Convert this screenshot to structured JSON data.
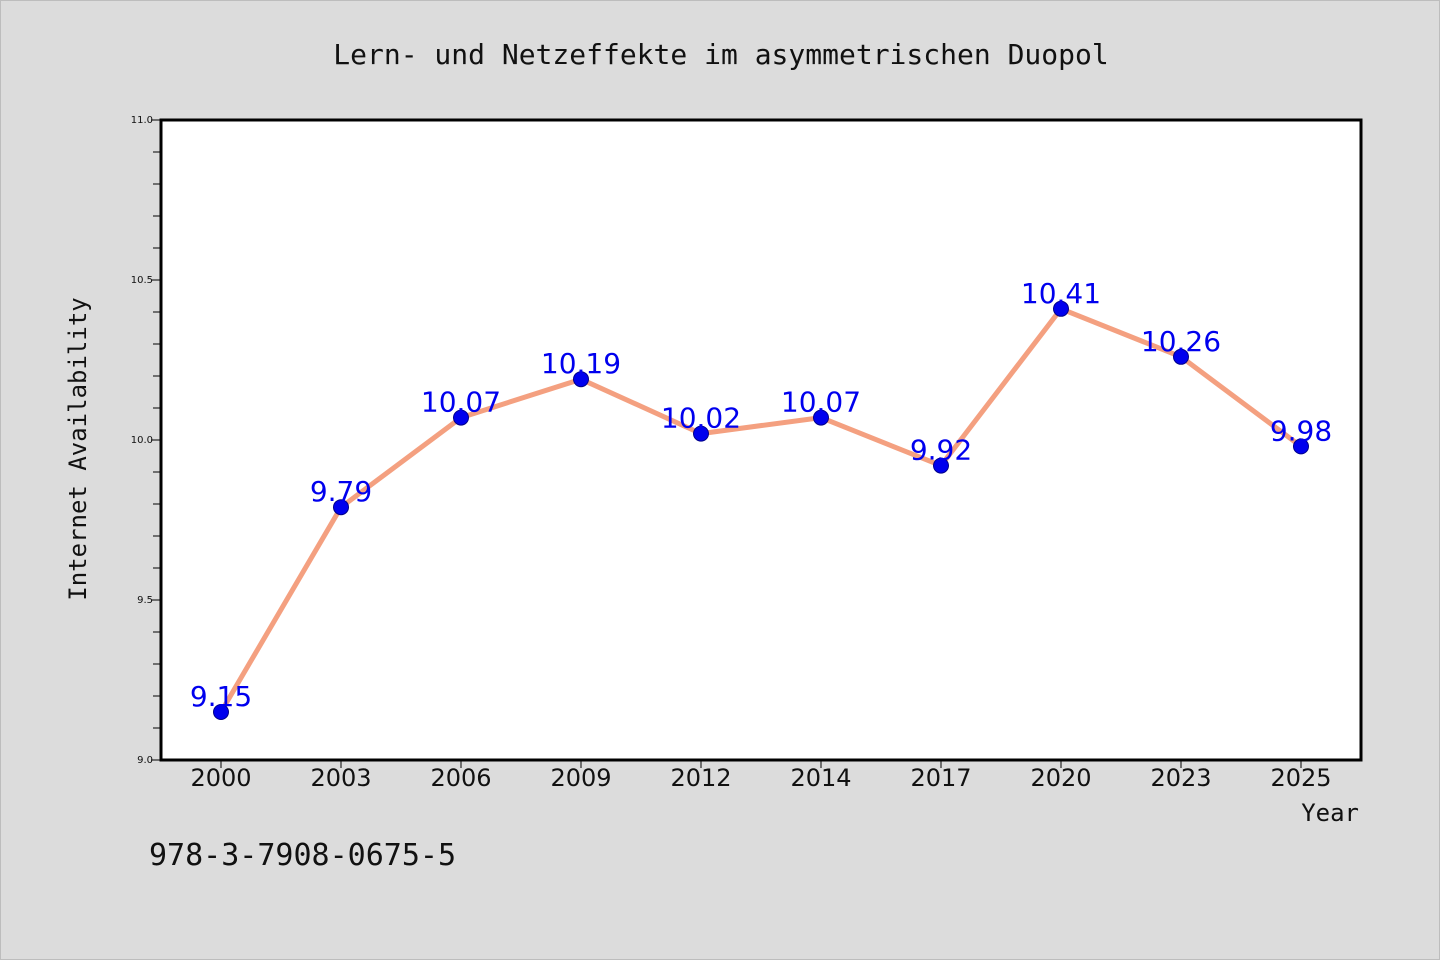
{
  "chart_data": {
    "type": "line",
    "title": "Lern- und Netzeffekte im asymmetrischen Duopol",
    "xlabel": "Year",
    "ylabel": "Internet Availability",
    "categories": [
      "2000",
      "2003",
      "2006",
      "2009",
      "2012",
      "2014",
      "2017",
      "2020",
      "2023",
      "2025"
    ],
    "series": [
      {
        "values": [
          9.15,
          9.79,
          10.07,
          10.19,
          10.02,
          10.07,
          9.92,
          10.41,
          10.26,
          9.98
        ]
      }
    ],
    "data_labels": [
      "9.15",
      "9.79",
      "10.07",
      "10.19",
      "10.02",
      "10.07",
      "9.92",
      "10.41",
      "10.26",
      "9.98"
    ],
    "ylim": [
      9.0,
      11.0
    ],
    "yticks": [
      "9.0",
      "9.5",
      "10.0",
      "10.5",
      "11.0"
    ],
    "grid": false,
    "legend": "none",
    "colors": {
      "line": "#f4a080",
      "marker": "#0000ee",
      "label": "#0000ee",
      "background": "#dcdcdc",
      "plot_bg": "#ffffff"
    }
  },
  "footer": {
    "isbn": "978-3-7908-0675-5"
  }
}
